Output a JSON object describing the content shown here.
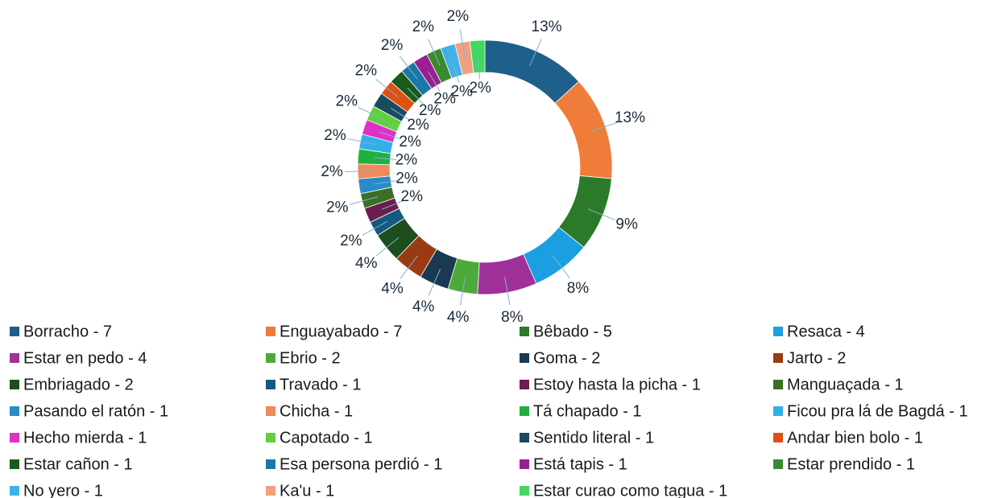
{
  "chart_data": {
    "type": "donut",
    "categories": [
      "Borracho - 7",
      "Enguayabado - 7",
      "Bêbado - 5",
      "Resaca - 4",
      "Estar en pedo - 4",
      "Ebrio - 2",
      "Goma - 2",
      "Jarto - 2",
      "Embriagado - 2",
      "Travado - 1",
      "Estoy hasta la picha - 1",
      "Manguaçada - 1",
      "Pasando el ratón - 1",
      "Chicha - 1",
      "Tá chapado - 1",
      "Ficou pra lá de Bagdá - 1",
      "Hecho mierda - 1",
      "Capotado - 1",
      "Sentido literal - 1",
      "Andar bien bolo - 1",
      "Estar cañon - 1",
      "Esa persona perdió - 1",
      "Está tapis - 1",
      "Estar prendido - 1",
      "No yero - 1",
      "Ka'u - 1",
      "Estar curao como tagua - 1"
    ],
    "values": [
      13.21,
      13.21,
      9.43,
      7.55,
      7.55,
      3.77,
      3.77,
      3.77,
      3.77,
      1.89,
      1.89,
      1.89,
      1.89,
      1.89,
      1.89,
      1.89,
      1.89,
      1.89,
      1.89,
      1.89,
      1.89,
      1.89,
      1.89,
      1.89,
      1.89,
      1.89,
      1.89
    ],
    "value_labels": [
      "13%",
      "13%",
      "9%",
      "8%",
      "8%",
      "4%",
      "4%",
      "4%",
      "4%",
      "2%",
      "2%",
      "2%",
      "2%",
      "2%",
      "2%",
      "2%",
      "2%",
      "2%",
      "2%",
      "2%",
      "2%",
      "2%",
      "2%",
      "2%",
      "2%",
      "2%",
      "2%"
    ],
    "colors": [
      "#1f5f8b",
      "#f07c3a",
      "#2a7a2a",
      "#1b9fe0",
      "#a0309a",
      "#4daa3a",
      "#1a3a52",
      "#9a3a12",
      "#1e4d1e",
      "#145a80",
      "#6a1f4e",
      "#3a6f25",
      "#2a8bc8",
      "#f08a5a",
      "#20b040",
      "#30b0e8",
      "#e030c8",
      "#60d040",
      "#1a4a60",
      "#e05010",
      "#1a5a1a",
      "#1a78a8",
      "#9a2090",
      "#3a8a30",
      "#40b0e8",
      "#f0a080",
      "#40d860"
    ],
    "legend": "bottom"
  }
}
